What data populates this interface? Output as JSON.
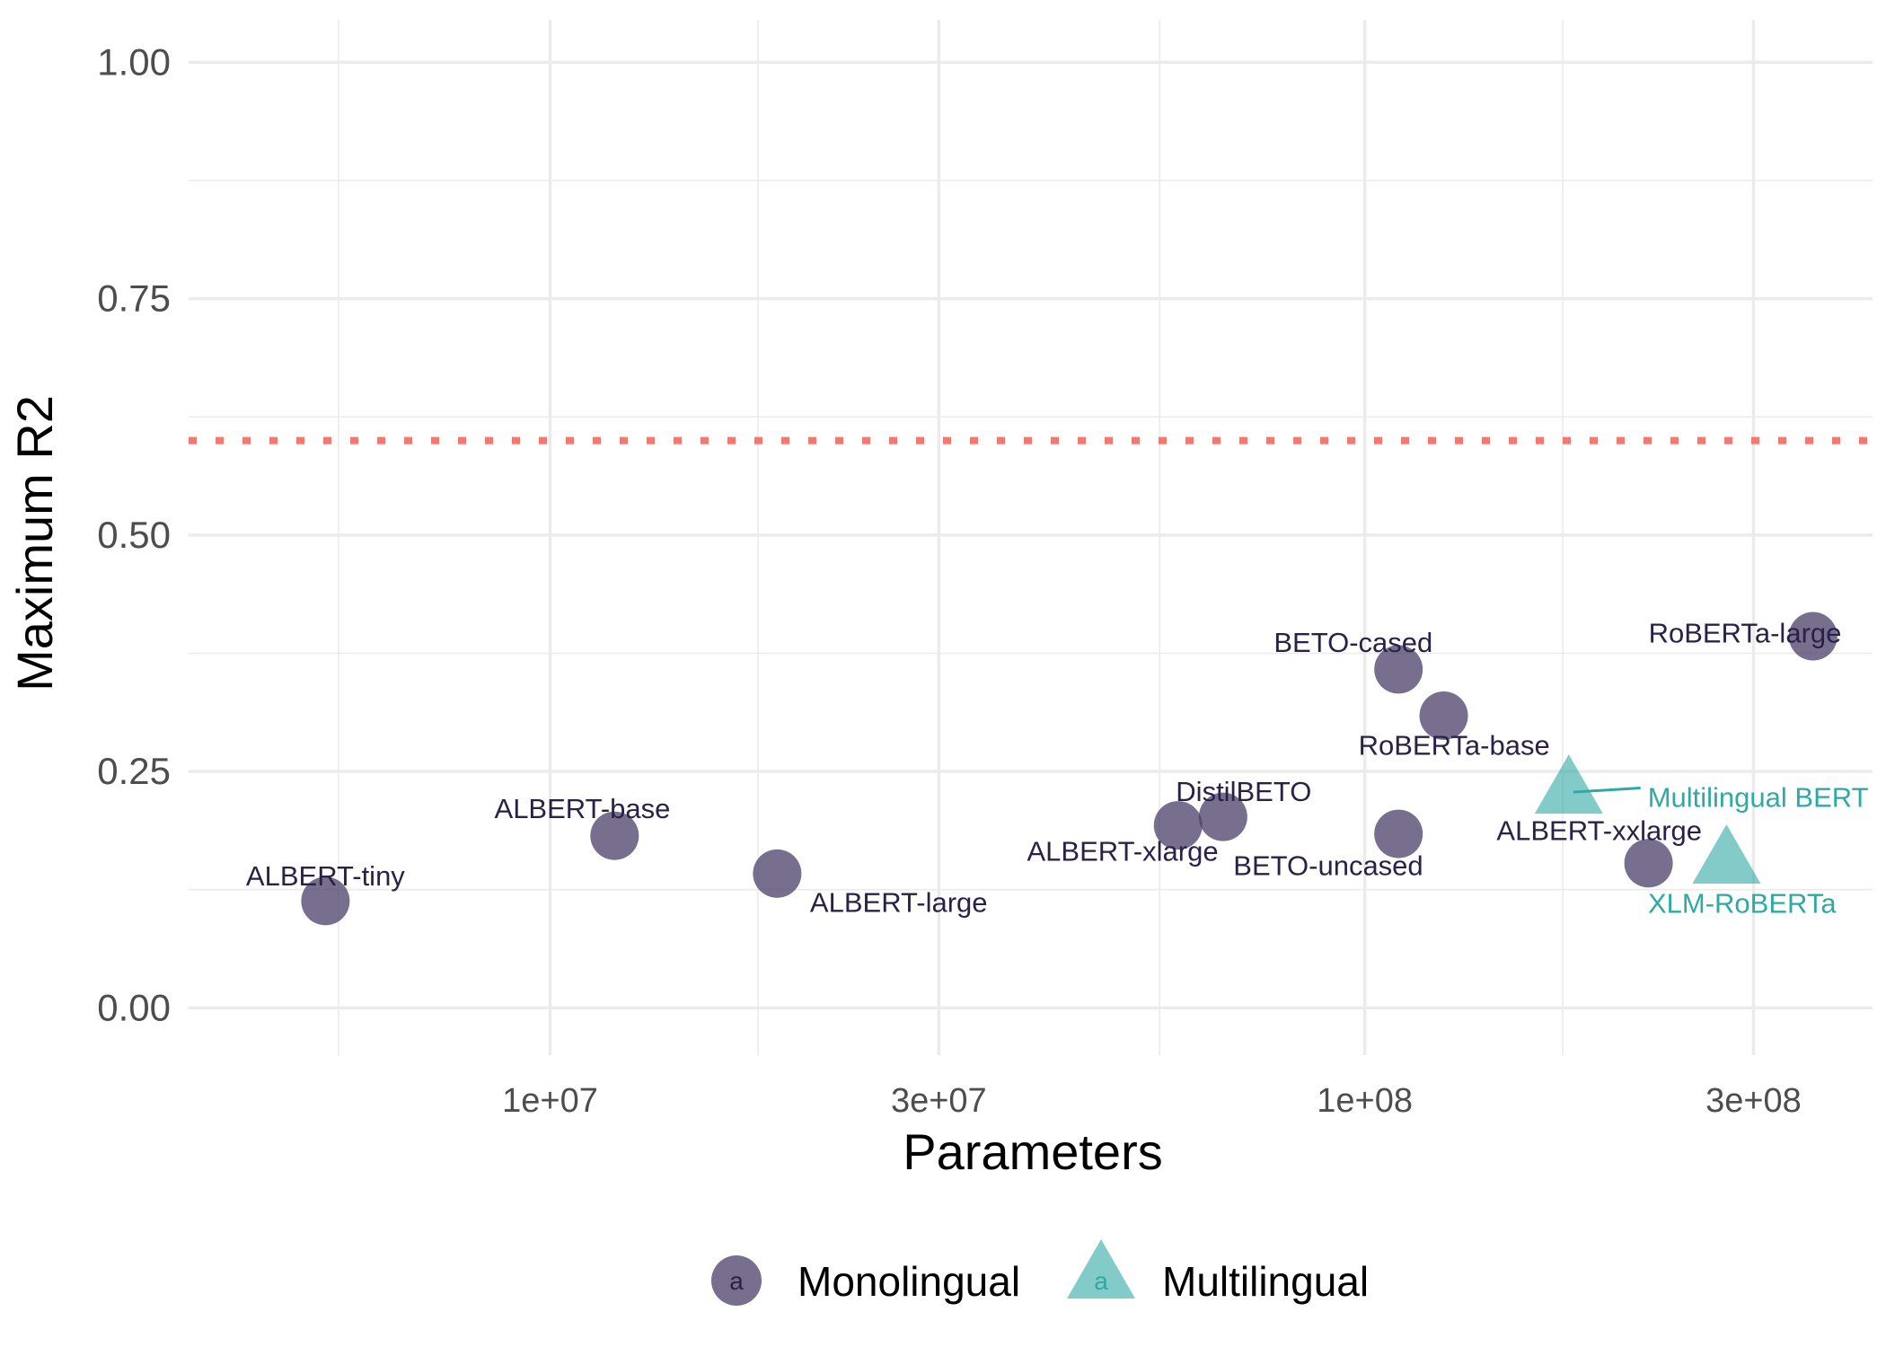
{
  "chart_data": {
    "type": "scatter",
    "title": "",
    "xlabel": "Parameters",
    "ylabel": "Maximum R2",
    "x_scale": "log10",
    "xlim": [
      3600000,
      420000000
    ],
    "ylim": [
      -0.05,
      1.045
    ],
    "x_ticks": [
      {
        "value": 10000000,
        "label": "1e+07"
      },
      {
        "value": 30000000,
        "label": "3e+07"
      },
      {
        "value": 100000000,
        "label": "1e+08"
      },
      {
        "value": 300000000,
        "label": "3e+08"
      }
    ],
    "x_minor_ticks": [
      5500000,
      18000000,
      56000000,
      175000000
    ],
    "y_ticks": [
      {
        "value": 0.0,
        "label": "0.00"
      },
      {
        "value": 0.25,
        "label": "0.25"
      },
      {
        "value": 0.5,
        "label": "0.50"
      },
      {
        "value": 0.75,
        "label": "0.75"
      },
      {
        "value": 1.0,
        "label": "1.00"
      }
    ],
    "y_minor_ticks": [
      0.125,
      0.375,
      0.625,
      0.875
    ],
    "reference_line": {
      "y": 0.6,
      "style": "dotted",
      "color": "#f8766d"
    },
    "legend": {
      "position": "bottom",
      "key_glyph": "a",
      "entries": [
        {
          "name": "Monolingual",
          "shape": "circle",
          "color": "#4b3f68"
        },
        {
          "name": "Multilingual",
          "shape": "triangle",
          "color": "#2fa9a3"
        }
      ]
    },
    "series": [
      {
        "name": "Monolingual",
        "shape": "circle",
        "color": "#4b3f68",
        "label_color": "#2b2146",
        "points": [
          {
            "label": "ALBERT-tiny",
            "x": 5300000,
            "y": 0.113,
            "label_dx": 1.0,
            "label_dy": 0.027
          },
          {
            "label": "ALBERT-base",
            "x": 12000000,
            "y": 0.182,
            "label_dx": 0.913,
            "label_dy": 0.029
          },
          {
            "label": "ALBERT-large",
            "x": 19000000,
            "y": 0.142,
            "label_dx": 1.41,
            "label_dy": -0.03
          },
          {
            "label": "ALBERT-xlarge",
            "x": 59000000,
            "y": 0.193,
            "label_dx": 0.855,
            "label_dy": -0.027
          },
          {
            "label": "DistilBETO",
            "x": 67000000,
            "y": 0.202,
            "label_dx": 1.06,
            "label_dy": 0.027
          },
          {
            "label": "BETO-cased",
            "x": 110000000,
            "y": 0.358,
            "label_dx": 0.88,
            "label_dy": 0.029
          },
          {
            "label": "RoBERTa-base",
            "x": 125000000,
            "y": 0.309,
            "label_dx": 1.03,
            "label_dy": -0.031
          },
          {
            "label": "BETO-uncased",
            "x": 110000000,
            "y": 0.184,
            "label_dx": 0.82,
            "label_dy": -0.033
          },
          {
            "label": "ALBERT-xxlarge",
            "x": 223000000,
            "y": 0.153,
            "label_dx": 0.87,
            "label_dy": 0.035
          },
          {
            "label": "RoBERTa-large",
            "x": 355000000,
            "y": 0.393,
            "label_dx": 0.825,
            "label_dy": 0.004
          }
        ]
      },
      {
        "name": "Multilingual",
        "shape": "triangle",
        "color": "#2fa9a3",
        "label_color": "#2fa9a3",
        "points": [
          {
            "label": "Multilingual BERT",
            "x": 178000000,
            "y": 0.232,
            "label_dx": 1.25,
            "label_dy": -0.009,
            "leader": true
          },
          {
            "label": "XLM-RoBERTa",
            "x": 278000000,
            "y": 0.158,
            "label_dx": 1.045,
            "label_dy": -0.047
          }
        ]
      }
    ]
  }
}
